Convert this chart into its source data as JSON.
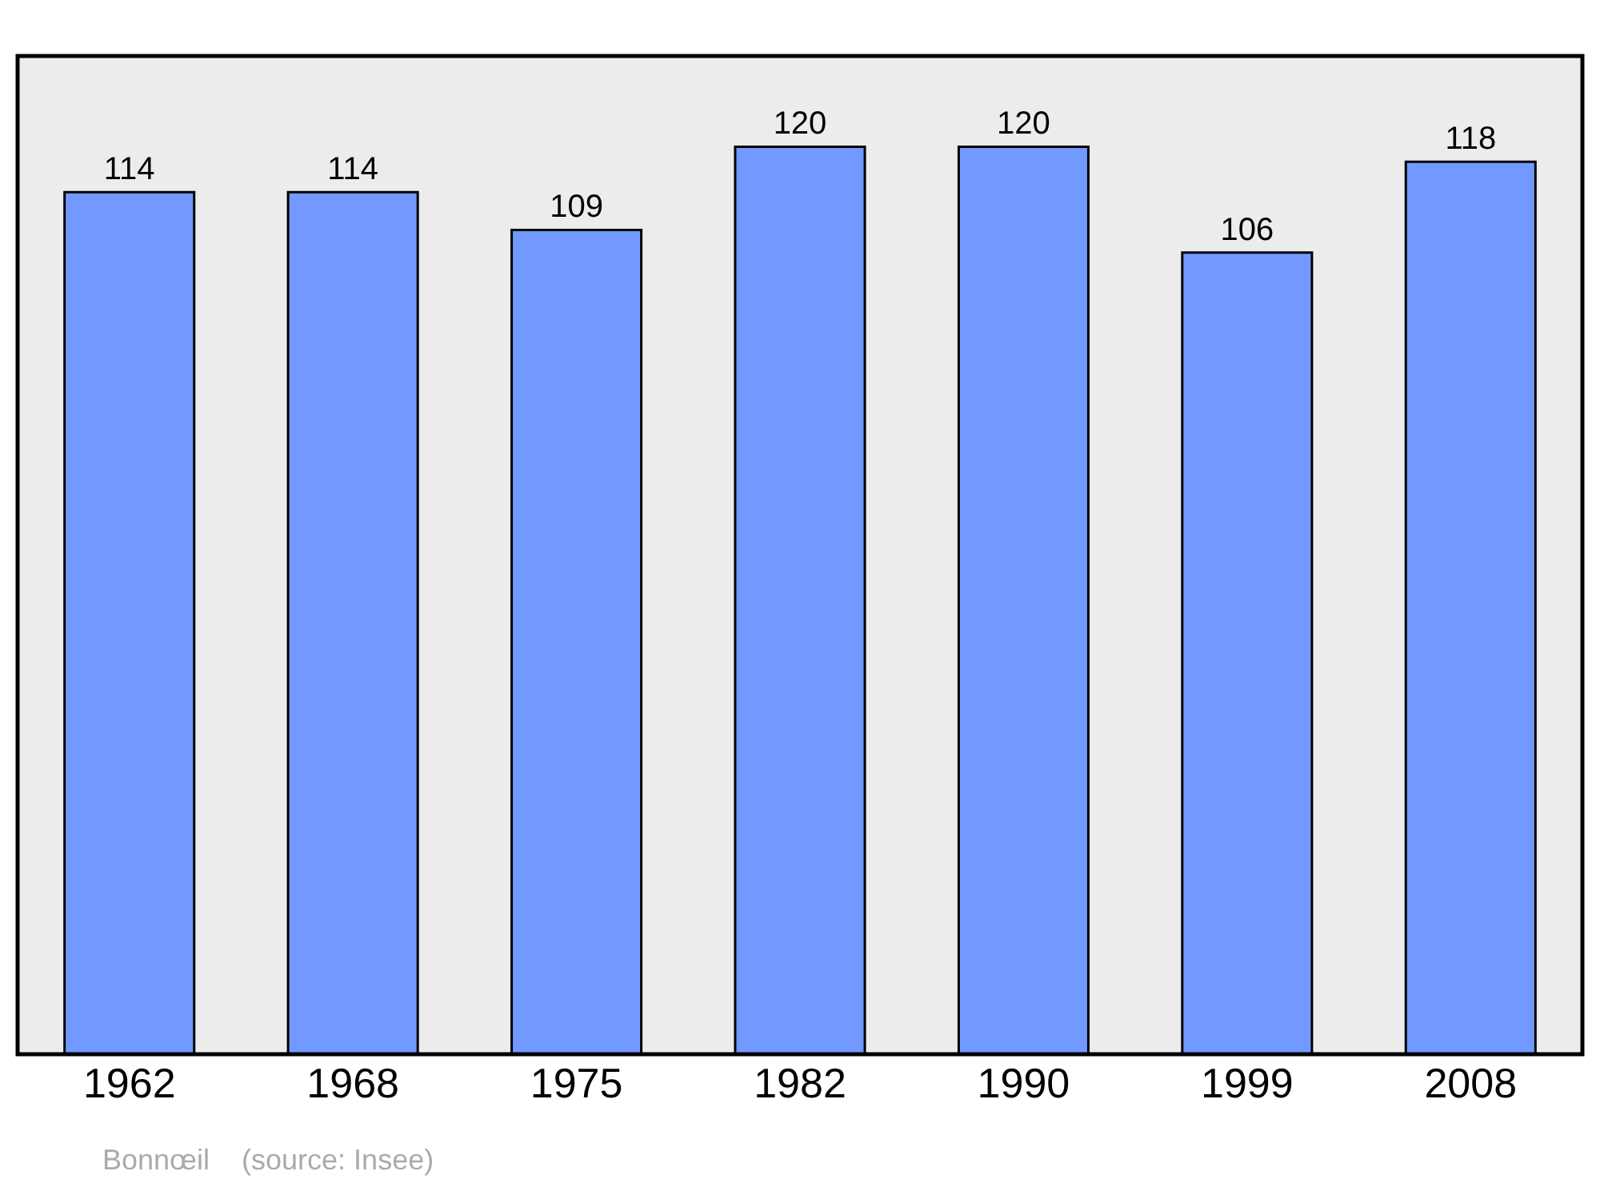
{
  "chart_data": {
    "type": "bar",
    "categories": [
      "1962",
      "1968",
      "1975",
      "1982",
      "1990",
      "1999",
      "2008"
    ],
    "values": [
      114,
      114,
      109,
      120,
      120,
      106,
      118
    ],
    "color": "#7299ff",
    "data_labels": true,
    "annotations": [
      "Bonnœil    (source: Insee)"
    ]
  }
}
